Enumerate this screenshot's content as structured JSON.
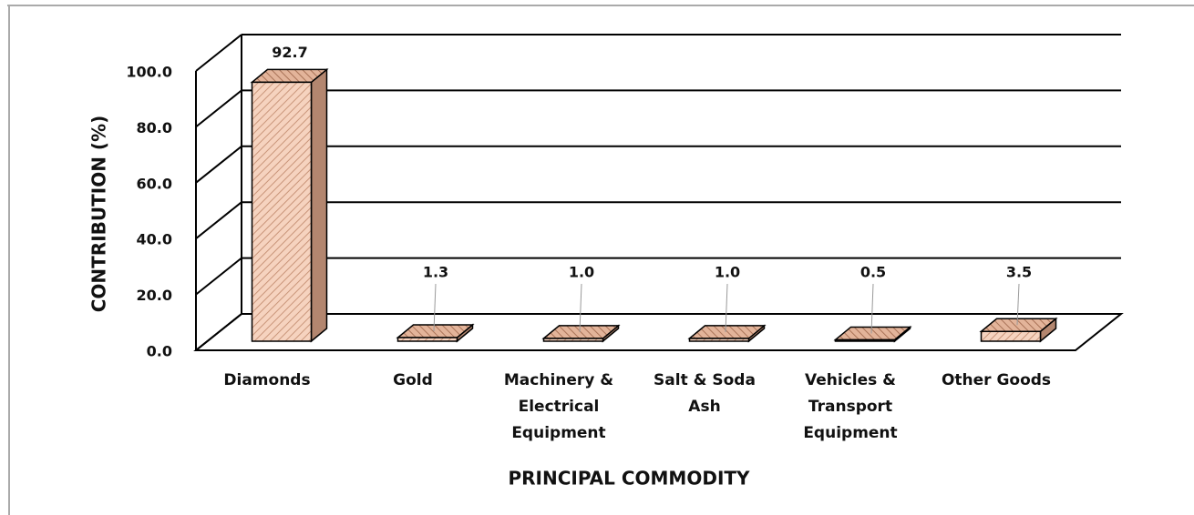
{
  "chart_data": {
    "type": "bar3d",
    "x_label": "PRINCIPAL COMMODITY",
    "y_label": "CONTRIBUTION (%)",
    "categories": [
      "Diamonds",
      "Gold",
      "Machinery & Electrical Equipment",
      "Salt & Soda Ash",
      "Vehicles & Transport Equipment",
      "Other Goods"
    ],
    "values": [
      92.7,
      1.3,
      1.0,
      1.0,
      0.5,
      3.5
    ],
    "value_labels": [
      "92.7",
      "1.3",
      "1.0",
      "1.0",
      "0.5",
      "3.5"
    ],
    "color": "#f6d3bf",
    "ylim": [
      0,
      100
    ],
    "yticks": [
      {
        "value": 0,
        "label": "0.0"
      },
      {
        "value": 20,
        "label": "20.0"
      },
      {
        "value": 40,
        "label": "40.0"
      },
      {
        "value": 60,
        "label": "60.0"
      },
      {
        "value": 80,
        "label": "80.0"
      },
      {
        "value": 100,
        "label": "100.0"
      }
    ],
    "grid": true
  }
}
